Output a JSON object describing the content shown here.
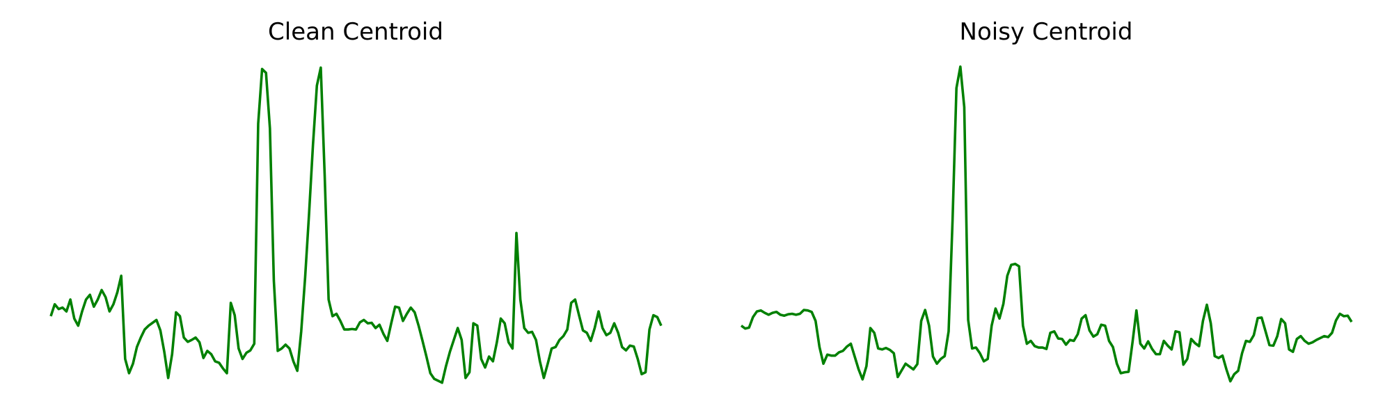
{
  "figure": {
    "line_color": "#008000",
    "background": "#ffffff"
  },
  "chart_data": [
    {
      "type": "line",
      "title": "Clean Centroid",
      "xlabel": "",
      "ylabel": "",
      "axes_visible": false,
      "grid": false,
      "legend": "none",
      "ylim": [
        -2.1,
        5.3
      ],
      "series": [
        {
          "name": "",
          "values": [
            -0.3,
            -0.05,
            -0.15,
            -0.12,
            -0.2,
            0.05,
            -0.35,
            -0.5,
            -0.2,
            0.05,
            0.15,
            -0.1,
            0.05,
            0.25,
            0.1,
            -0.2,
            -0.05,
            0.2,
            0.55,
            -1.2,
            -1.5,
            -1.3,
            -0.95,
            -0.75,
            -0.58,
            -0.5,
            -0.44,
            -0.38,
            -0.6,
            -1.05,
            -1.6,
            -1.1,
            -0.22,
            -0.3,
            -0.75,
            -0.84,
            -0.8,
            -0.75,
            -0.85,
            -1.18,
            -1.03,
            -1.1,
            -1.25,
            -1.28,
            -1.4,
            -1.5,
            -0.02,
            -0.28,
            -0.98,
            -1.2,
            -1.07,
            -1.02,
            -0.88,
            3.75,
            4.9,
            4.82,
            3.65,
            0.45,
            -1.03,
            -0.98,
            -0.9,
            -0.98,
            -1.25,
            -1.45,
            -0.62,
            0.52,
            1.85,
            3.3,
            4.55,
            4.93,
            2.65,
            0.05,
            -0.3,
            -0.25,
            -0.4,
            -0.58,
            -0.58,
            -0.57,
            -0.58,
            -0.43,
            -0.38,
            -0.45,
            -0.44,
            -0.55,
            -0.48,
            -0.67,
            -0.82,
            -0.45,
            -0.1,
            -0.12,
            -0.4,
            -0.25,
            -0.12,
            -0.22,
            -0.5,
            -0.82,
            -1.15,
            -1.5,
            -1.62,
            -1.66,
            -1.7,
            -1.35,
            -1.05,
            -0.8,
            -0.55,
            -0.8,
            -1.6,
            -1.48,
            -0.45,
            -0.5,
            -1.2,
            -1.38,
            -1.15,
            -1.25,
            -0.85,
            -0.35,
            -0.45,
            -0.85,
            -0.98,
            1.45,
            0.05,
            -0.55,
            -0.65,
            -0.63,
            -0.8,
            -1.25,
            -1.6,
            -1.3,
            -0.98,
            -0.95,
            -0.8,
            -0.72,
            -0.58,
            -0.02,
            0.05,
            -0.28,
            -0.6,
            -0.65,
            -0.82,
            -0.55,
            -0.2,
            -0.55,
            -0.7,
            -0.65,
            -0.45,
            -0.65,
            -0.95,
            -1.02,
            -0.92,
            -0.94,
            -1.2,
            -1.52,
            -1.48,
            -0.58,
            -0.28,
            -0.32,
            -0.5
          ]
        }
      ]
    },
    {
      "type": "line",
      "title": "Noisy Centroid",
      "xlabel": "",
      "ylabel": "",
      "axes_visible": false,
      "grid": false,
      "legend": "none",
      "ylim": [
        -2.1,
        5.3
      ],
      "series": [
        {
          "name": "",
          "values": [
            -0.5,
            -0.56,
            -0.54,
            -0.32,
            -0.2,
            -0.18,
            -0.23,
            -0.27,
            -0.23,
            -0.21,
            -0.27,
            -0.29,
            -0.26,
            -0.25,
            -0.27,
            -0.25,
            -0.17,
            -0.18,
            -0.21,
            -0.4,
            -0.95,
            -1.3,
            -1.11,
            -1.13,
            -1.13,
            -1.06,
            -1.03,
            -0.94,
            -0.88,
            -1.15,
            -1.42,
            -1.63,
            -1.35,
            -0.55,
            -0.65,
            -0.98,
            -1.0,
            -0.97,
            -1.01,
            -1.08,
            -1.58,
            -1.44,
            -1.3,
            -1.36,
            -1.42,
            -1.31,
            -0.4,
            -0.17,
            -0.5,
            -1.15,
            -1.3,
            -1.2,
            -1.14,
            -0.62,
            1.7,
            4.5,
            4.95,
            4.1,
            -0.38,
            -0.98,
            -0.96,
            -1.08,
            -1.25,
            -1.2,
            -0.5,
            -0.14,
            -0.35,
            -0.04,
            0.55,
            0.78,
            0.8,
            0.75,
            -0.5,
            -0.88,
            -0.82,
            -0.93,
            -0.96,
            -0.96,
            -0.99,
            -0.65,
            -0.62,
            -0.77,
            -0.78,
            -0.9,
            -0.8,
            -0.82,
            -0.68,
            -0.35,
            -0.28,
            -0.6,
            -0.73,
            -0.68,
            -0.48,
            -0.5,
            -0.82,
            -0.95,
            -1.3,
            -1.5,
            -1.48,
            -1.47,
            -0.85,
            -0.18,
            -0.88,
            -0.98,
            -0.83,
            -0.99,
            -1.1,
            -1.1,
            -0.82,
            -0.92,
            -1.0,
            -0.62,
            -0.64,
            -1.32,
            -1.2,
            -0.78,
            -0.87,
            -0.93,
            -0.4,
            -0.06,
            -0.45,
            -1.14,
            -1.18,
            -1.13,
            -1.42,
            -1.67,
            -1.52,
            -1.45,
            -1.08,
            -0.82,
            -0.84,
            -0.7,
            -0.34,
            -0.33,
            -0.62,
            -0.91,
            -0.92,
            -0.72,
            -0.36,
            -0.45,
            -1.0,
            -1.05,
            -0.78,
            -0.72,
            -0.82,
            -0.88,
            -0.85,
            -0.8,
            -0.76,
            -0.72,
            -0.74,
            -0.65,
            -0.39,
            -0.25,
            -0.3,
            -0.29,
            -0.42
          ]
        }
      ]
    }
  ]
}
